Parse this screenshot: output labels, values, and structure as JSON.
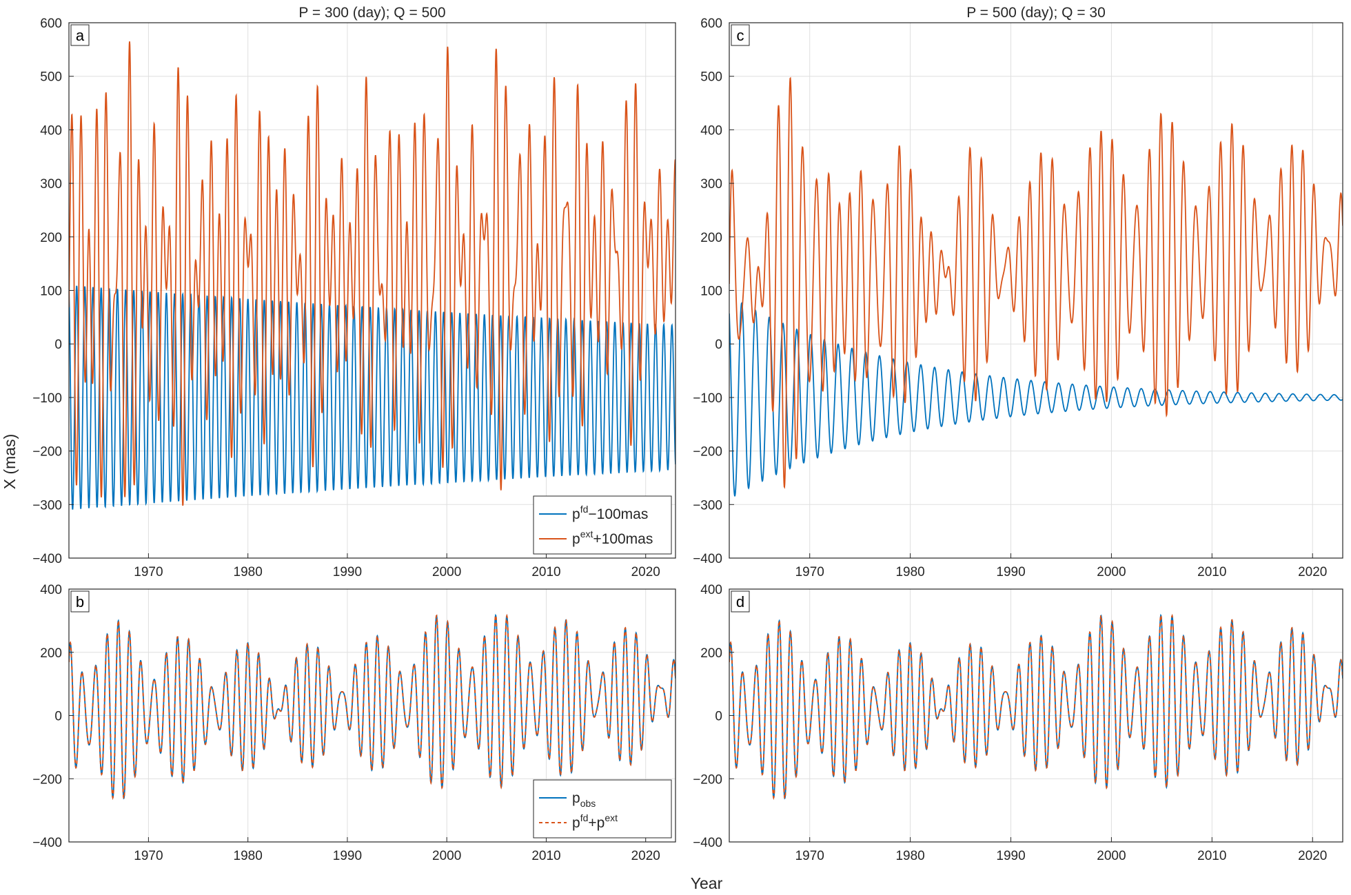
{
  "figure": {
    "ylabel": "X (mas)",
    "xlabel": "Year",
    "colors": {
      "blue": "#0072bd",
      "orange": "#d95319",
      "grid": "#dfdfdf",
      "axis": "#262626"
    }
  },
  "chart_data": [
    {
      "id": "a",
      "type": "line",
      "title": "P = 300 (day); Q = 500",
      "panel_label": "a",
      "xlim": [
        1962,
        2023
      ],
      "ylim": [
        -400,
        600
      ],
      "xticks": [
        1970,
        1980,
        1990,
        2000,
        2010,
        2020
      ],
      "yticks": [
        -400,
        -300,
        -200,
        -100,
        0,
        100,
        200,
        300,
        400,
        500,
        600
      ],
      "grid": true,
      "legend": "bottom-right",
      "legend_items": [
        {
          "base": "p",
          "sup": "fd",
          "sub": "",
          "rest": "−100mas",
          "color": "#0072bd",
          "dash": false
        },
        {
          "base": "p",
          "sup": "ext",
          "sub": "",
          "rest": "+100mas",
          "color": "#d95319",
          "dash": false
        }
      ],
      "series": [
        {
          "legend_ref": 0,
          "color": "#0072bd",
          "model": "damped",
          "period": 0.82,
          "amp_start": 210,
          "amp_end": 135,
          "center_start": -100,
          "center_end": -100,
          "phase": 0.3
        },
        {
          "legend_ref": 1,
          "color": "#d95319",
          "model": "observed",
          "offset": 100,
          "residual_period": 0.82,
          "residual_amp_start": 210,
          "residual_amp_end": 135,
          "residual_phase": 0.3
        }
      ]
    },
    {
      "id": "b",
      "type": "line",
      "title": "",
      "panel_label": "b",
      "xlim": [
        1962,
        2023
      ],
      "ylim": [
        -400,
        400
      ],
      "xticks": [
        1970,
        1980,
        1990,
        2000,
        2010,
        2020
      ],
      "yticks": [
        -400,
        -200,
        0,
        200,
        400
      ],
      "grid": true,
      "legend": "bottom-right",
      "legend_items": [
        {
          "base": "p",
          "sup": "",
          "sub": "obs",
          "rest": "",
          "color": "#0072bd",
          "dash": false
        },
        {
          "base": "p",
          "sup": "fd",
          "sub": "",
          "rest": "+p",
          "sup2": "ext",
          "color": "#d95319",
          "dash": true
        }
      ],
      "series": [
        {
          "legend_ref": 0,
          "color": "#0072bd",
          "model": "observed",
          "offset": 0
        },
        {
          "legend_ref": 1,
          "color": "#d95319",
          "model": "observed",
          "offset": 0,
          "dashed": true
        }
      ]
    },
    {
      "id": "c",
      "type": "line",
      "title": "P = 500 (day); Q = 30",
      "panel_label": "c",
      "xlim": [
        1962,
        2023
      ],
      "ylim": [
        -400,
        600
      ],
      "xticks": [
        1970,
        1980,
        1990,
        2000,
        2010,
        2020
      ],
      "yticks": [
        -400,
        -300,
        -200,
        -100,
        0,
        100,
        200,
        300,
        400,
        500,
        600
      ],
      "grid": true,
      "legend": "none",
      "legend_items": [],
      "series": [
        {
          "legend_ref": -1,
          "color": "#0072bd",
          "model": "damped",
          "period": 1.37,
          "amp_start": 190,
          "amp_end": 5,
          "center_start": -100,
          "center_end": -100,
          "phase": 0.6
        },
        {
          "legend_ref": -1,
          "color": "#d95319",
          "model": "observed",
          "offset": 100,
          "residual_period": 1.37,
          "residual_amp_start": 190,
          "residual_amp_end": 5,
          "residual_phase": 0.6
        }
      ]
    },
    {
      "id": "d",
      "type": "line",
      "title": "",
      "panel_label": "d",
      "xlim": [
        1962,
        2023
      ],
      "ylim": [
        -400,
        400
      ],
      "xticks": [
        1970,
        1980,
        1990,
        2000,
        2010,
        2020
      ],
      "yticks": [
        -400,
        -200,
        0,
        200,
        400
      ],
      "grid": true,
      "legend": "none",
      "legend_items": [],
      "series": [
        {
          "legend_ref": -1,
          "color": "#0072bd",
          "model": "observed",
          "offset": 0
        },
        {
          "legend_ref": -1,
          "color": "#d95319",
          "model": "observed",
          "offset": 0,
          "dashed": true
        }
      ]
    }
  ]
}
